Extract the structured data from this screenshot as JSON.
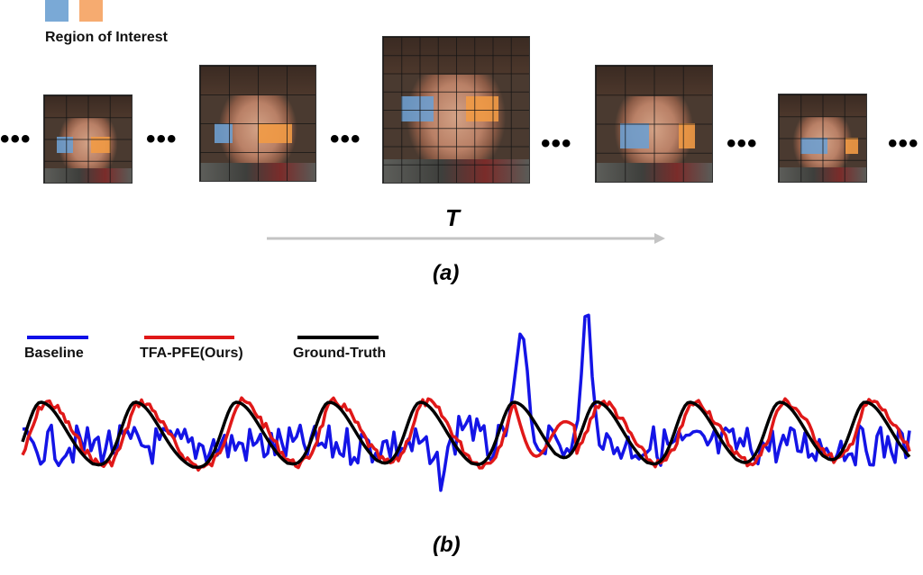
{
  "legend_roi": {
    "label": "Region of Interest",
    "colors": [
      "#6e9fcf",
      "#f4a86a"
    ]
  },
  "ellipsis": "•••",
  "time_axis_label": "T",
  "caption_a": "(a)",
  "caption_b": "(b)",
  "frames_count": 5,
  "signal_legend": [
    {
      "label": "Baseline",
      "color": "#1010e8"
    },
    {
      "label": "TFA-PFE(Ours)",
      "color": "#e01818"
    },
    {
      "label": "Ground-Truth",
      "color": "#000000"
    }
  ]
}
